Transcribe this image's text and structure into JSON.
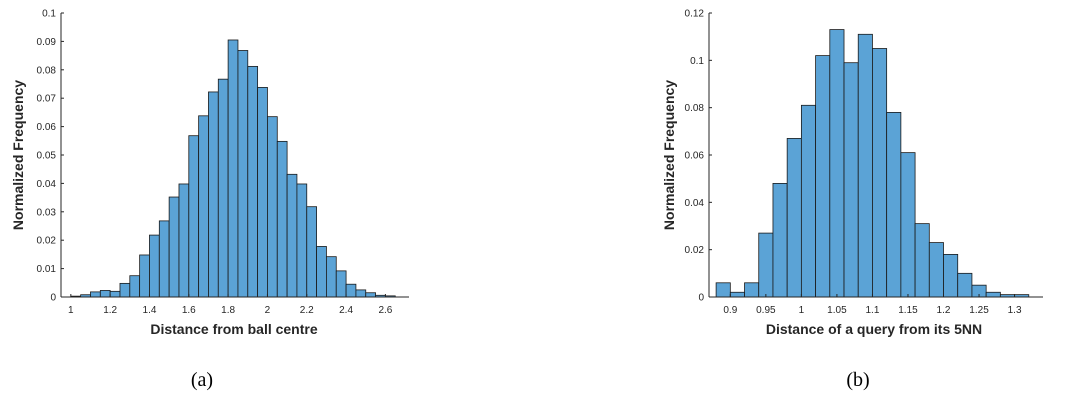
{
  "figure": {
    "bar_color": "#5ba3d6",
    "bar_edge_color": "#1a1a1a",
    "axis_color": "#262626"
  },
  "chart_data": [
    {
      "type": "bar",
      "caption": "(a)",
      "xlabel": "Distance from ball centre",
      "ylabel": "Normalized Frequency",
      "grid": false,
      "xlim": [
        0.95,
        2.72
      ],
      "ylim": [
        0,
        0.1
      ],
      "xticks": [
        1,
        1.2,
        1.4,
        1.6,
        1.8,
        2,
        2.2,
        2.4,
        2.6
      ],
      "xtick_labels": [
        "1",
        "1.2",
        "1.4",
        "1.6",
        "1.8",
        "2",
        "2.2",
        "2.4",
        "2.6"
      ],
      "yticks": [
        0,
        0.01,
        0.02,
        0.03,
        0.04,
        0.05,
        0.06,
        0.07,
        0.08,
        0.09,
        0.1
      ],
      "ytick_labels": [
        "0",
        "0.01",
        "0.02",
        "0.03",
        "0.04",
        "0.05",
        "0.06",
        "0.07",
        "0.08",
        "0.09",
        "0.1"
      ],
      "bin_edges": [
        1.0,
        1.05,
        1.1,
        1.15,
        1.2,
        1.25,
        1.3,
        1.35,
        1.4,
        1.45,
        1.5,
        1.55,
        1.6,
        1.65,
        1.7,
        1.75,
        1.8,
        1.85,
        1.9,
        1.95,
        2.0,
        2.05,
        2.1,
        2.15,
        2.2,
        2.25,
        2.3,
        2.35,
        2.4,
        2.45,
        2.5,
        2.55,
        2.6,
        2.65
      ],
      "values": [
        0.0003,
        0.0008,
        0.0018,
        0.0023,
        0.002,
        0.0048,
        0.0075,
        0.0148,
        0.0218,
        0.0268,
        0.0352,
        0.0398,
        0.0568,
        0.0638,
        0.0722,
        0.0767,
        0.0905,
        0.0868,
        0.0812,
        0.0738,
        0.0635,
        0.0548,
        0.0432,
        0.0398,
        0.0318,
        0.0178,
        0.0142,
        0.0092,
        0.0045,
        0.0025,
        0.0015,
        0.0006,
        0.0004
      ]
    },
    {
      "type": "bar",
      "caption": "(b)",
      "xlabel": "Distance of a query from its 5NN",
      "ylabel": "Normalized Frequency",
      "grid": false,
      "xlim": [
        0.87,
        1.34
      ],
      "ylim": [
        0,
        0.12
      ],
      "xticks": [
        0.9,
        0.95,
        1,
        1.05,
        1.1,
        1.15,
        1.2,
        1.25,
        1.3
      ],
      "xtick_labels": [
        "0.9",
        "0.95",
        "1",
        "1.05",
        "1.1",
        "1.15",
        "1.2",
        "1.25",
        "1.3"
      ],
      "yticks": [
        0,
        0.02,
        0.04,
        0.06,
        0.08,
        0.1,
        0.12
      ],
      "ytick_labels": [
        "0",
        "0.02",
        "0.04",
        "0.06",
        "0.08",
        "0.1",
        "0.12"
      ],
      "bin_edges": [
        0.88,
        0.9,
        0.92,
        0.94,
        0.96,
        0.98,
        1.0,
        1.02,
        1.04,
        1.06,
        1.08,
        1.1,
        1.12,
        1.14,
        1.16,
        1.18,
        1.2,
        1.22,
        1.24,
        1.26,
        1.28,
        1.3,
        1.32
      ],
      "values": [
        0.006,
        0.002,
        0.006,
        0.027,
        0.048,
        0.067,
        0.081,
        0.102,
        0.113,
        0.099,
        0.111,
        0.105,
        0.078,
        0.061,
        0.031,
        0.023,
        0.018,
        0.01,
        0.005,
        0.002,
        0.001,
        0.001
      ]
    }
  ]
}
